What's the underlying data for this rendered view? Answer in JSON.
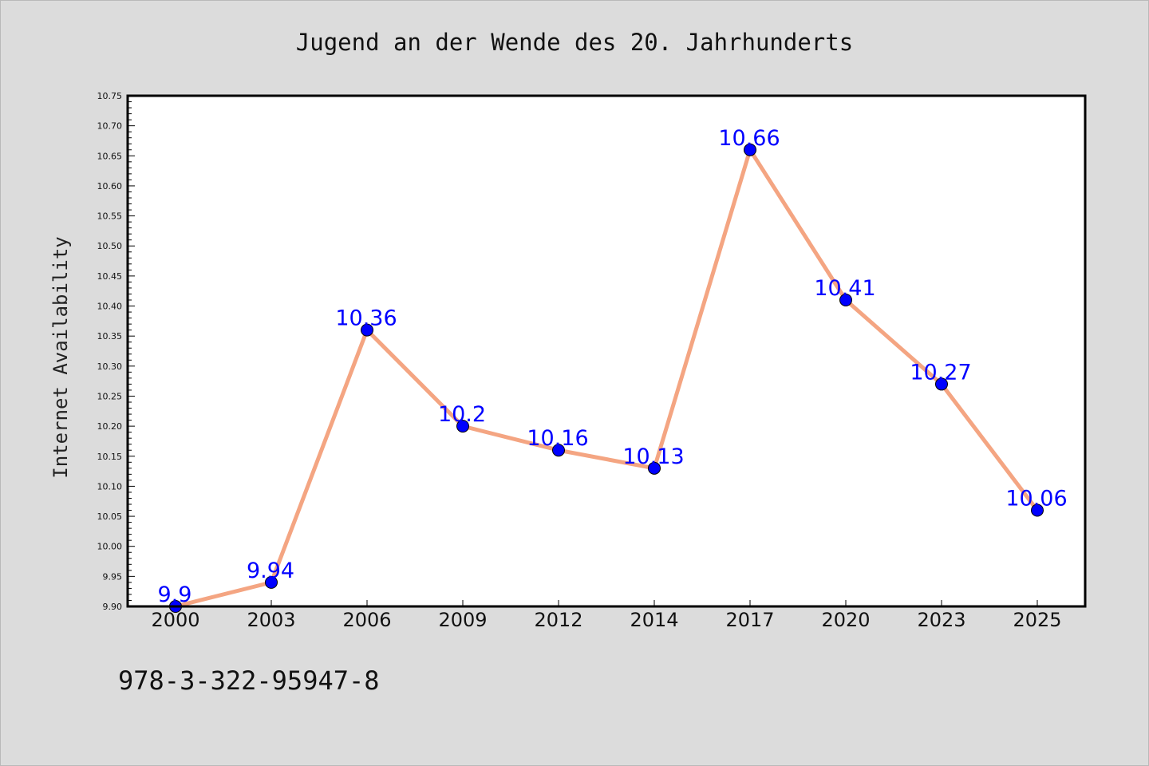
{
  "chart_data": {
    "type": "line",
    "title": "Jugend an der Wende des 20. Jahrhunderts",
    "xlabel": "",
    "ylabel": "Internet Availability",
    "categories": [
      "2000",
      "2003",
      "2006",
      "2009",
      "2012",
      "2014",
      "2017",
      "2020",
      "2023",
      "2025"
    ],
    "series": [
      {
        "values": [
          9.9,
          9.94,
          10.36,
          10.2,
          10.16,
          10.13,
          10.66,
          10.41,
          10.27,
          10.06
        ]
      }
    ],
    "data_labels": [
      "9.9",
      "9.94",
      "10.36",
      "10.2",
      "10.16",
      "10.13",
      "10.66",
      "10.41",
      "10.27",
      "10.06"
    ],
    "ylim": [
      9.9,
      10.75
    ],
    "yticks": [
      "9.90",
      "9.95",
      "10.00",
      "10.05",
      "10.10",
      "10.15",
      "10.20",
      "10.25",
      "10.30",
      "10.35",
      "10.40",
      "10.45",
      "10.50",
      "10.55",
      "10.60",
      "10.65",
      "10.70",
      "10.75"
    ],
    "grid": false,
    "line_color": "#f4a582",
    "marker_color": "#0000ff",
    "label_color": "#0000ff"
  },
  "footer": {
    "text": "978-3-322-95947-8"
  }
}
